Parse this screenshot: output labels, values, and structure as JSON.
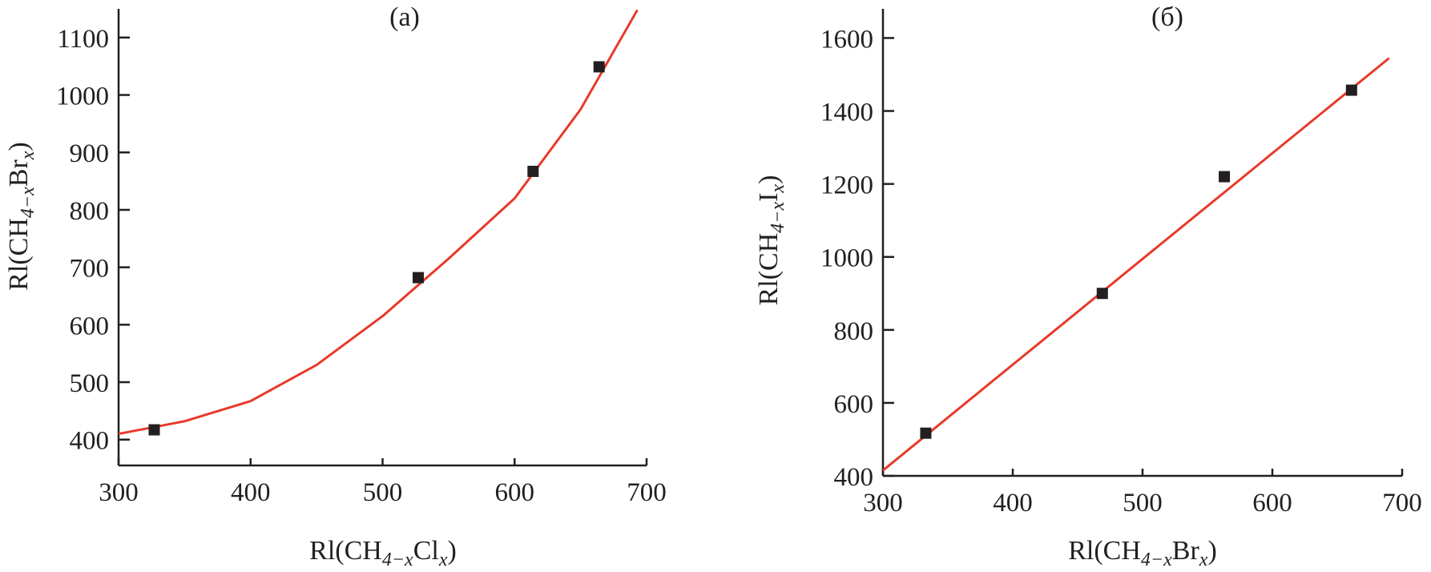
{
  "chart_data": [
    {
      "type": "scatter",
      "title": "(a)",
      "xlabel": {
        "main": "Rl(CH",
        "sub1": "4−x",
        "mid": "Cl",
        "sub2": "x",
        "end": ")"
      },
      "ylabel": {
        "main": "Rl(CH",
        "sub1": "4−x",
        "mid": "Br",
        "sub2": "x",
        "end": ")"
      },
      "xlim": [
        300,
        700
      ],
      "ylim": [
        355,
        1150
      ],
      "xticks": [
        300,
        400,
        500,
        600,
        700
      ],
      "yticks": [
        400,
        500,
        600,
        700,
        800,
        900,
        1000,
        1100
      ],
      "grid": false,
      "points": {
        "x": [
          327,
          527,
          614,
          664
        ],
        "y": [
          417,
          682,
          867,
          1049
        ]
      },
      "fit": {
        "x": [
          300,
          350,
          400,
          450,
          500,
          550,
          600,
          650,
          693
        ],
        "y": [
          410,
          432,
          467,
          530,
          615,
          715,
          820,
          975,
          1148
        ]
      },
      "marker_color": "#231f20",
      "fit_color": "#e8392a"
    },
    {
      "type": "scatter",
      "title": "(б)",
      "xlabel": {
        "main": "Rl(CH",
        "sub1": "4−x",
        "mid": "Br",
        "sub2": "x",
        "end": ")"
      },
      "ylabel": {
        "main": "Rl(CH",
        "sub1": "4−x",
        "mid": "I",
        "sub2": "x",
        "end": ")"
      },
      "xlim": [
        300,
        700
      ],
      "ylim": [
        400,
        1680
      ],
      "xticks": [
        300,
        400,
        500,
        600,
        700
      ],
      "yticks": [
        400,
        600,
        800,
        1000,
        1200,
        1400,
        1600
      ],
      "grid": false,
      "points": {
        "x": [
          333,
          469,
          563,
          661
        ],
        "y": [
          517,
          900,
          1220,
          1457
        ]
      },
      "fit": {
        "x": [
          300,
          690
        ],
        "y": [
          415,
          1545
        ]
      },
      "marker_color": "#231f20",
      "fit_color": "#e8392a"
    }
  ]
}
